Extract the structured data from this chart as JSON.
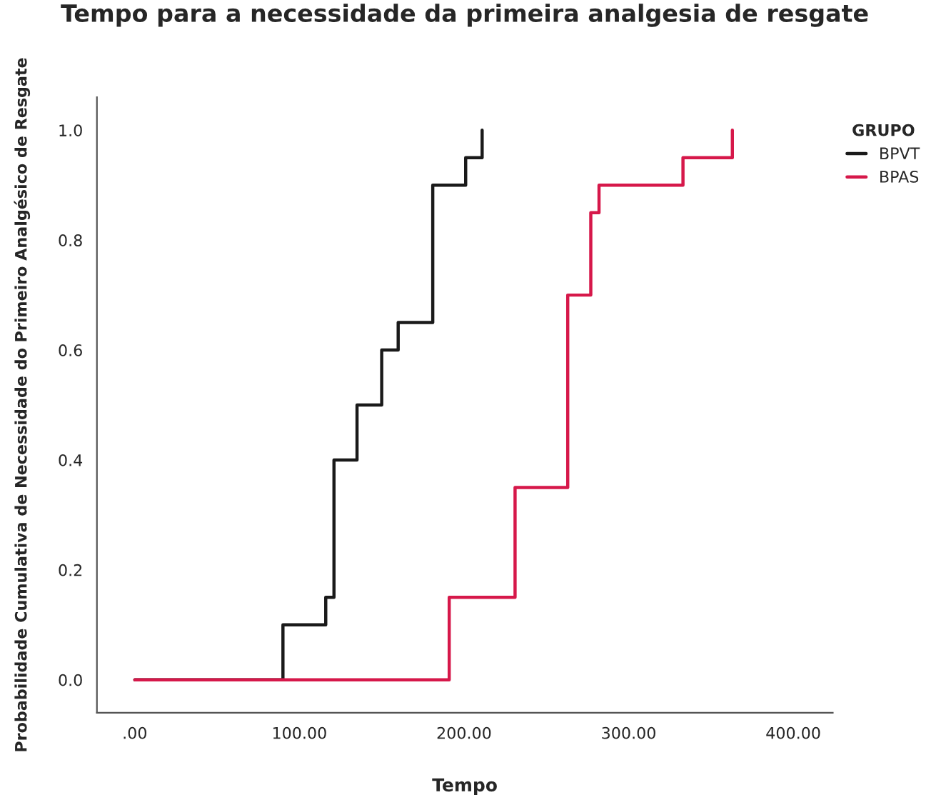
{
  "chart_data": {
    "type": "step",
    "title": "Tempo para a necessidade da primeira analgesia de resgate",
    "xlabel": "Tempo",
    "ylabel": "Probabilidade Cumulativa de Necessidade do Primeiro Analgésico de Resgate",
    "legend_title": "GRUPO",
    "legend": "top right",
    "series": [
      {
        "name": "BPVT",
        "color": "#1a1a1a",
        "x": [
          0,
          90,
          116,
          121,
          135,
          150,
          160,
          181,
          201,
          211
        ],
        "values": [
          0,
          0.1,
          0.15,
          0.4,
          0.5,
          0.6,
          0.65,
          0.9,
          0.95,
          1.0
        ]
      },
      {
        "name": "BPAS",
        "color": "#d6184a",
        "x": [
          0,
          191,
          231,
          263,
          277,
          282,
          333,
          363
        ],
        "values": [
          0,
          0.15,
          0.35,
          0.7,
          0.85,
          0.9,
          0.95,
          1.0
        ]
      }
    ],
    "xlim": [
      -23,
      424
    ],
    "ylim": [
      -0.06,
      1.06
    ],
    "xticks": [
      {
        "value": 0,
        "label": ".00"
      },
      {
        "value": 100,
        "label": "100.00"
      },
      {
        "value": 200,
        "label": "200.00"
      },
      {
        "value": 300,
        "label": "300.00"
      },
      {
        "value": 400,
        "label": "400.00"
      }
    ],
    "yticks": [
      {
        "value": 0,
        "label": "0.0"
      },
      {
        "value": 0.2,
        "label": "0.2"
      },
      {
        "value": 0.4,
        "label": "0.4"
      },
      {
        "value": 0.6,
        "label": "0.6"
      },
      {
        "value": 0.8,
        "label": "0.8"
      },
      {
        "value": 1.0,
        "label": "1.0"
      }
    ],
    "grid": false
  }
}
